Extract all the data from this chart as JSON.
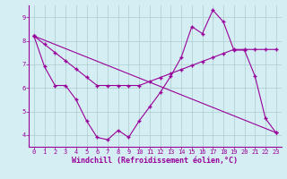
{
  "line1_x": [
    0,
    1,
    2,
    3,
    4,
    5,
    6,
    7,
    8,
    9,
    10,
    11,
    12,
    13,
    14,
    15,
    16,
    17,
    18,
    19,
    20,
    21,
    22,
    23
  ],
  "line1_y": [
    8.2,
    6.9,
    6.1,
    6.1,
    5.5,
    4.6,
    3.9,
    3.8,
    4.2,
    3.9,
    4.6,
    5.2,
    5.8,
    6.5,
    7.3,
    8.6,
    8.3,
    9.3,
    8.8,
    7.6,
    7.6,
    6.5,
    4.7,
    4.1
  ],
  "line2_x": [
    0,
    1,
    2,
    3,
    4,
    5,
    6,
    7,
    8,
    9,
    10,
    11,
    12,
    13,
    14,
    15,
    16,
    17,
    18,
    19,
    20,
    21,
    22,
    23
  ],
  "line2_y": [
    8.2,
    7.85,
    7.5,
    7.15,
    6.8,
    6.45,
    6.1,
    6.1,
    6.1,
    6.1,
    6.1,
    6.27,
    6.44,
    6.61,
    6.78,
    6.95,
    7.12,
    7.29,
    7.46,
    7.63,
    7.63,
    7.63,
    7.63,
    7.63
  ],
  "line3_x": [
    0,
    23
  ],
  "line3_y": [
    8.2,
    4.1
  ],
  "line_color": "#990099",
  "bg_color": "#d4eef4",
  "grid_color": "#aacccc",
  "xlabel": "Windchill (Refroidissement éolien,°C)",
  "ylim": [
    3.5,
    9.5
  ],
  "xlim": [
    -0.5,
    23.5
  ],
  "yticks": [
    4,
    5,
    6,
    7,
    8,
    9
  ],
  "xticks": [
    0,
    1,
    2,
    3,
    4,
    5,
    6,
    7,
    8,
    9,
    10,
    11,
    12,
    13,
    14,
    15,
    16,
    17,
    18,
    19,
    20,
    21,
    22,
    23
  ],
  "tick_fontsize": 5.0,
  "ylabel_fontsize": 5.5,
  "xlabel_fontsize": 6.0
}
